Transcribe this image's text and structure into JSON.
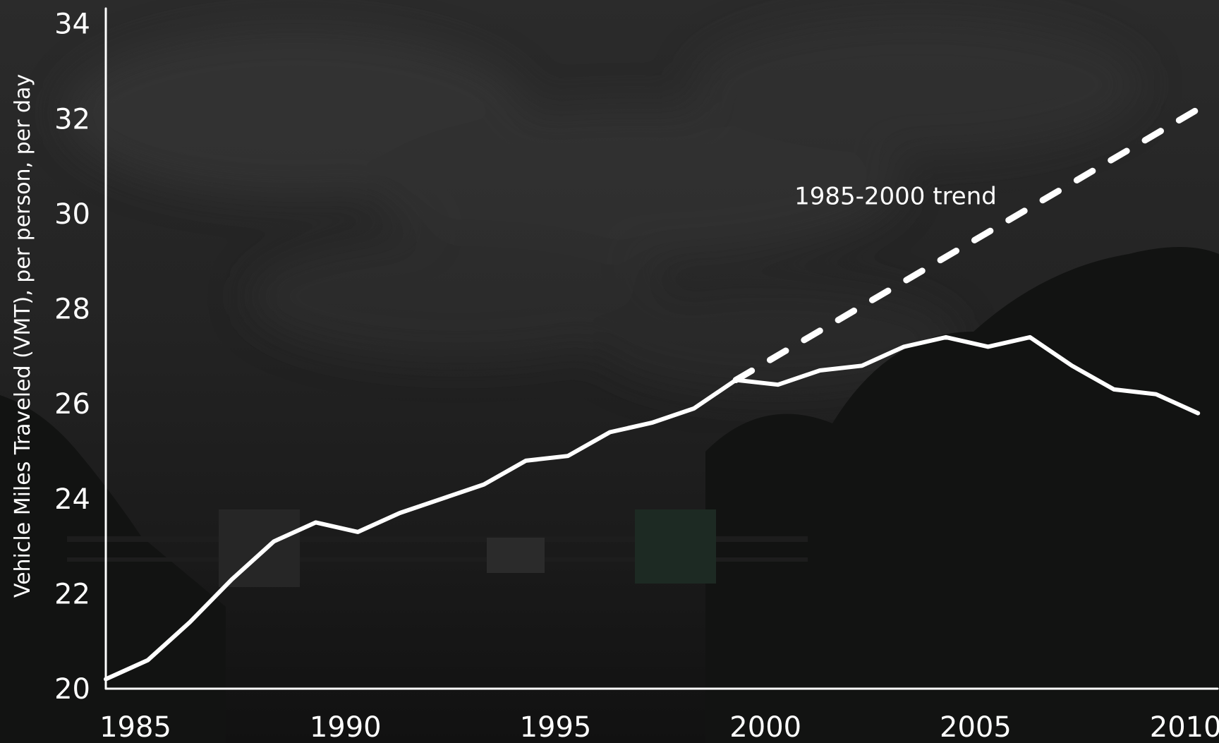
{
  "chart_data": {
    "type": "line",
    "title": "",
    "xlabel": "",
    "ylabel": "Vehicle Miles Traveled (VMT), per person, per day",
    "xlim": [
      1985,
      2011.5
    ],
    "ylim": [
      20,
      34.5
    ],
    "xticks": [
      1985,
      1990,
      1995,
      2000,
      2005,
      2010
    ],
    "yticks": [
      20,
      22,
      24,
      26,
      28,
      30,
      32,
      34
    ],
    "grid": false,
    "legend": "none",
    "annotations": [
      {
        "text": "1985-2000 trend",
        "x": 2003.8,
        "y": 30.2
      }
    ],
    "series": [
      {
        "style": "solid",
        "color": "#ffffff",
        "x": [
          1985,
          1986,
          1987,
          1988,
          1989,
          1990,
          1991,
          1992,
          1993,
          1994,
          1995,
          1996,
          1997,
          1998,
          1999,
          2000,
          2001,
          2002,
          2003,
          2004,
          2005,
          2006,
          2007,
          2008,
          2009,
          2010,
          2011
        ],
        "y": [
          20.2,
          20.6,
          21.4,
          22.3,
          23.1,
          23.5,
          23.3,
          23.7,
          24.0,
          24.3,
          24.8,
          24.9,
          25.4,
          25.6,
          25.9,
          26.5,
          26.4,
          26.7,
          26.8,
          27.2,
          27.4,
          27.2,
          27.4,
          26.8,
          26.3,
          26.2,
          25.8
        ]
      },
      {
        "style": "dashed",
        "color": "#ffffff",
        "x": [
          2000,
          2011
        ],
        "y": [
          26.5,
          32.2
        ]
      }
    ]
  }
}
